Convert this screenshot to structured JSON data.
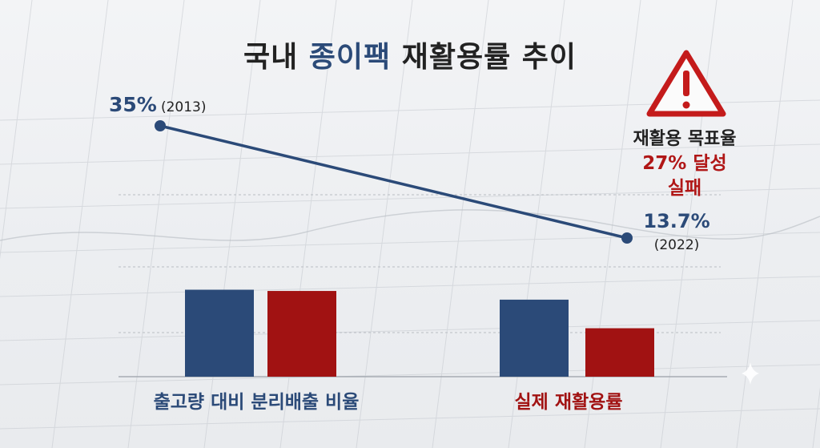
{
  "title": {
    "prefix": "국내 ",
    "highlight": "종이팩",
    "suffix": " 재활용률 추이"
  },
  "warning": {
    "icon": "warning-triangle-icon",
    "line1": "재활용 목표율",
    "line2": "27% 달성",
    "line3": "실패"
  },
  "colors": {
    "navy": "#2b4a78",
    "red": "#a11212",
    "title": "#222222"
  },
  "chart_data": [
    {
      "type": "line",
      "x": [
        "2013",
        "2022"
      ],
      "y": [
        35,
        13.7
      ],
      "labels": [
        {
          "value": "35%",
          "year": "(2013)"
        },
        {
          "value": "13.7%",
          "year": "(2022)"
        }
      ]
    },
    {
      "type": "bar",
      "categories": [
        "출고량 대비 분리배출 비율",
        "실제 재활용률"
      ],
      "series": [
        {
          "color": "#2b4a78",
          "values": [
            35,
            31
          ]
        },
        {
          "color": "#a11212",
          "values": [
            34.5,
            19.5
          ]
        }
      ],
      "ylim": [
        0,
        60
      ]
    }
  ]
}
